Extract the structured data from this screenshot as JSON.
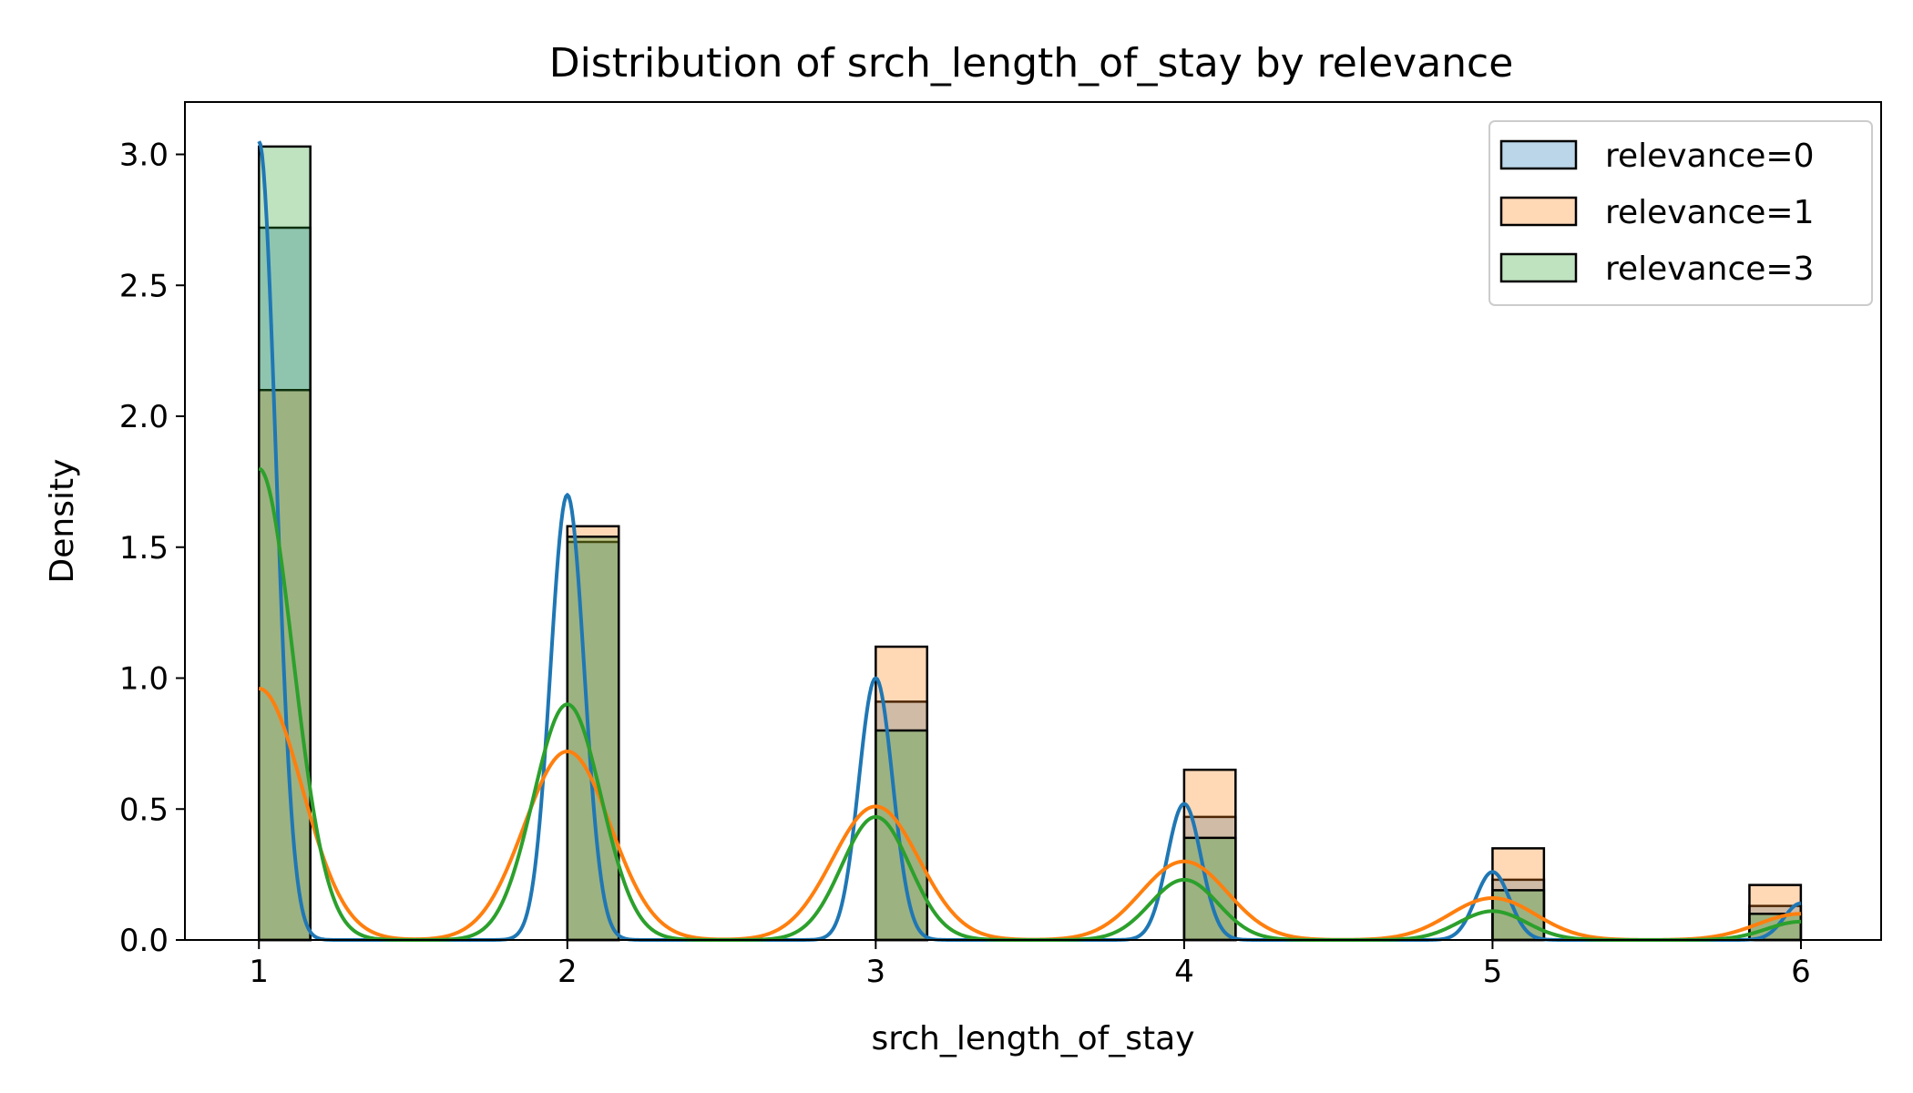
{
  "chart_data": {
    "type": "histogram",
    "title": "Distribution of srch_length_of_stay by relevance",
    "xlabel": "srch_length_of_stay",
    "ylabel": "Density",
    "xlim": [
      0.76,
      6.26
    ],
    "ylim": [
      0,
      3.2
    ],
    "x_ticks": [
      1,
      2,
      3,
      4,
      5,
      6
    ],
    "y_ticks": [
      0.0,
      0.5,
      1.0,
      1.5,
      2.0,
      2.5,
      3.0
    ],
    "x_tick_labels": [
      "1",
      "2",
      "3",
      "4",
      "5",
      "6"
    ],
    "y_tick_labels": [
      "0.0",
      "0.5",
      "1.0",
      "1.5",
      "2.0",
      "2.5",
      "3.0"
    ],
    "bin_width": 0.1667,
    "bin_starts": [
      1,
      2,
      3,
      4,
      5,
      5.833
    ],
    "legend_position": "upper right",
    "grid": false,
    "series": [
      {
        "name": "relevance=0",
        "color": "#1f77b4",
        "bar_fill": "rgba(31,119,180,0.3)",
        "densities": [
          2.72,
          1.52,
          0.91,
          0.47,
          0.23,
          0.13
        ],
        "kde": [
          {
            "center": 1,
            "peak": 3.05,
            "sd": 0.055
          },
          {
            "center": 2,
            "peak": 1.7,
            "sd": 0.055
          },
          {
            "center": 3,
            "peak": 1.0,
            "sd": 0.055
          },
          {
            "center": 4,
            "peak": 0.52,
            "sd": 0.055
          },
          {
            "center": 5,
            "peak": 0.26,
            "sd": 0.055
          },
          {
            "center": 6,
            "peak": 0.14,
            "sd": 0.055
          }
        ]
      },
      {
        "name": "relevance=1",
        "color": "#ff7f0e",
        "bar_fill": "rgba(255,127,14,0.3)",
        "densities": [
          2.1,
          1.58,
          1.12,
          0.65,
          0.35,
          0.21
        ],
        "kde": [
          {
            "center": 1,
            "peak": 0.96,
            "sd": 0.14
          },
          {
            "center": 2,
            "peak": 0.72,
            "sd": 0.14
          },
          {
            "center": 3,
            "peak": 0.51,
            "sd": 0.14
          },
          {
            "center": 4,
            "peak": 0.3,
            "sd": 0.14
          },
          {
            "center": 5,
            "peak": 0.16,
            "sd": 0.14
          },
          {
            "center": 6,
            "peak": 0.1,
            "sd": 0.14
          }
        ]
      },
      {
        "name": "relevance=3",
        "color": "#2ca02c",
        "bar_fill": "rgba(44,160,44,0.3)",
        "densities": [
          3.03,
          1.54,
          0.8,
          0.39,
          0.19,
          0.1
        ],
        "kde": [
          {
            "center": 1,
            "peak": 1.8,
            "sd": 0.11
          },
          {
            "center": 2,
            "peak": 0.9,
            "sd": 0.11
          },
          {
            "center": 3,
            "peak": 0.47,
            "sd": 0.11
          },
          {
            "center": 4,
            "peak": 0.23,
            "sd": 0.11
          },
          {
            "center": 5,
            "peak": 0.11,
            "sd": 0.11
          },
          {
            "center": 6,
            "peak": 0.07,
            "sd": 0.11
          }
        ]
      }
    ]
  }
}
